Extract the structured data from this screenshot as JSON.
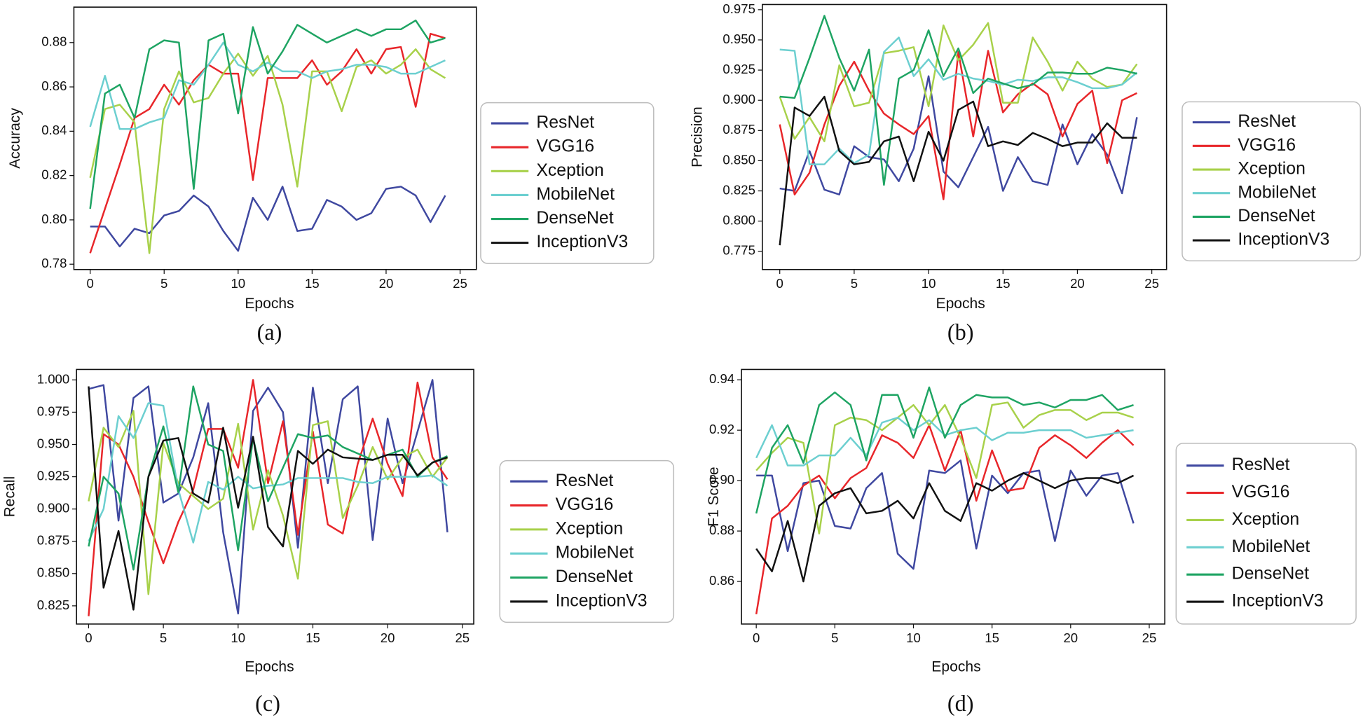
{
  "chart_data": [
    {
      "type": "line",
      "caption": "(a)",
      "x_label": "Epochs",
      "y_label": "Accuracy",
      "x": [
        0,
        1,
        2,
        3,
        4,
        5,
        6,
        7,
        8,
        9,
        10,
        11,
        12,
        13,
        14,
        15,
        16,
        17,
        18,
        19,
        20,
        21,
        22,
        23,
        24
      ],
      "xlim": [
        -1.1,
        26.1
      ],
      "xticks": [
        0,
        5,
        10,
        15,
        20,
        25
      ],
      "ylim": [
        0.7776,
        0.896
      ],
      "yticks": [
        0.78,
        {
          "value": 0.8,
          "label": "0.80"
        },
        0.82,
        0.84,
        0.86,
        0.88
      ],
      "series": [
        {
          "name": "ResNet",
          "color": "#3f48a0",
          "values": [
            0.797,
            0.797,
            0.788,
            0.796,
            0.794,
            0.802,
            0.804,
            0.811,
            0.806,
            0.795,
            0.786,
            0.81,
            0.8,
            0.815,
            0.795,
            0.796,
            0.809,
            0.806,
            0.8,
            0.803,
            0.814,
            0.815,
            0.811,
            0.799,
            0.811
          ]
        },
        {
          "name": "VGG16",
          "color": "#e8262a",
          "values": [
            0.785,
            0.805,
            0.825,
            0.846,
            0.85,
            0.861,
            0.852,
            0.863,
            0.87,
            0.866,
            0.866,
            0.818,
            0.864,
            0.864,
            0.864,
            0.872,
            0.861,
            0.867,
            0.877,
            0.866,
            0.877,
            0.878,
            0.851,
            0.884,
            0.882
          ]
        },
        {
          "name": "Xception",
          "color": "#a8d14a",
          "values": [
            0.819,
            0.85,
            0.852,
            0.844,
            0.785,
            0.85,
            0.867,
            0.853,
            0.855,
            0.866,
            0.875,
            0.865,
            0.874,
            0.852,
            0.815,
            0.867,
            0.867,
            0.849,
            0.869,
            0.872,
            0.866,
            0.87,
            0.877,
            0.868,
            0.864
          ]
        },
        {
          "name": "MobileNet",
          "color": "#6ccfd0",
          "values": [
            0.842,
            0.865,
            0.841,
            0.841,
            0.844,
            0.846,
            0.863,
            0.861,
            0.87,
            0.88,
            0.87,
            0.867,
            0.871,
            0.867,
            0.867,
            0.864,
            0.867,
            0.868,
            0.87,
            0.87,
            0.869,
            0.866,
            0.866,
            0.869,
            0.872
          ]
        },
        {
          "name": "DenseNet",
          "color": "#1ea463",
          "values": [
            0.805,
            0.857,
            0.861,
            0.846,
            0.877,
            0.881,
            0.88,
            0.814,
            0.881,
            0.884,
            0.848,
            0.887,
            0.866,
            0.876,
            0.888,
            0.884,
            0.88,
            0.883,
            0.886,
            0.883,
            0.886,
            0.886,
            0.89,
            0.88,
            0.882
          ]
        },
        {
          "name": "InceptionV3",
          "color": "#111111",
          "values": [
            null,
            null,
            null,
            null,
            null,
            null,
            null,
            null,
            null,
            null,
            null,
            null,
            null,
            null,
            null,
            null,
            null,
            null,
            null,
            null,
            null,
            null,
            null,
            null,
            null
          ]
        }
      ]
    },
    {
      "type": "line",
      "caption": "(b)",
      "x_label": "Epochs",
      "y_label": "Precision",
      "x": [
        0,
        1,
        2,
        3,
        4,
        5,
        6,
        7,
        8,
        9,
        10,
        11,
        12,
        13,
        14,
        15,
        16,
        17,
        18,
        19,
        20,
        21,
        22,
        23,
        24
      ],
      "xlim": [
        -1.17,
        25.99
      ],
      "xticks": [
        0,
        5,
        10,
        15,
        20,
        25
      ],
      "ylim": [
        0.7599,
        0.9793
      ],
      "yticks": [
        0.775,
        {
          "value": 0.8,
          "label": "0.800"
        },
        0.825,
        {
          "value": 0.85,
          "label": "0.850"
        },
        0.875,
        {
          "value": 0.9,
          "label": "0.900"
        },
        0.925,
        {
          "value": 0.95,
          "label": "0.950"
        },
        0.975
      ],
      "series": [
        {
          "name": "ResNet",
          "color": "#3f48a0",
          "values": [
            0.827,
            0.825,
            0.858,
            0.826,
            0.822,
            0.862,
            0.853,
            0.851,
            0.833,
            0.86,
            0.92,
            0.841,
            0.828,
            0.853,
            0.878,
            0.825,
            0.853,
            0.833,
            0.83,
            0.88,
            0.847,
            0.872,
            0.855,
            0.823,
            0.886
          ]
        },
        {
          "name": "VGG16",
          "color": "#e8262a",
          "values": [
            0.88,
            0.822,
            0.84,
            0.88,
            0.912,
            0.932,
            0.908,
            0.889,
            0.88,
            0.872,
            0.887,
            0.818,
            0.94,
            0.87,
            0.941,
            0.89,
            0.905,
            0.914,
            0.905,
            0.87,
            0.897,
            0.908,
            0.848,
            0.9,
            0.906
          ]
        },
        {
          "name": "Xception",
          "color": "#a8d14a",
          "values": [
            0.903,
            0.868,
            0.886,
            0.866,
            0.929,
            0.895,
            0.898,
            0.939,
            0.941,
            0.944,
            0.895,
            0.962,
            0.933,
            0.946,
            0.964,
            0.898,
            0.898,
            0.952,
            0.932,
            0.908,
            0.932,
            0.918,
            0.911,
            0.913,
            0.93
          ]
        },
        {
          "name": "MobileNet",
          "color": "#6ccfd0",
          "values": [
            0.942,
            0.941,
            0.847,
            0.847,
            0.86,
            0.848,
            0.855,
            0.94,
            0.952,
            0.92,
            0.934,
            0.917,
            0.922,
            0.918,
            0.916,
            0.913,
            0.917,
            0.916,
            0.919,
            0.919,
            0.915,
            0.91,
            0.91,
            0.913,
            0.923
          ]
        },
        {
          "name": "DenseNet",
          "color": "#1ea463",
          "values": [
            0.903,
            0.902,
            0.935,
            0.97,
            0.935,
            0.908,
            0.942,
            0.83,
            0.918,
            0.925,
            0.958,
            0.92,
            0.943,
            0.906,
            0.918,
            0.914,
            0.91,
            0.913,
            0.923,
            0.923,
            0.922,
            0.922,
            0.927,
            0.925,
            0.922
          ]
        },
        {
          "name": "InceptionV3",
          "color": "#111111",
          "values": [
            0.78,
            0.894,
            0.887,
            0.903,
            0.858,
            0.847,
            0.849,
            0.866,
            0.87,
            0.833,
            0.874,
            0.85,
            0.892,
            0.899,
            0.862,
            0.866,
            0.863,
            0.873,
            0.868,
            0.862,
            0.865,
            0.865,
            0.881,
            0.869,
            0.869
          ]
        }
      ]
    },
    {
      "type": "line",
      "caption": "(c)",
      "x_label": "Epochs",
      "y_label": "Recall",
      "x": [
        0,
        1,
        2,
        3,
        4,
        5,
        6,
        7,
        8,
        9,
        10,
        11,
        12,
        13,
        14,
        15,
        16,
        17,
        18,
        19,
        20,
        21,
        22,
        23,
        24
      ],
      "xlim": [
        -0.81,
        25.76
      ],
      "xticks": [
        0,
        5,
        10,
        15,
        20,
        25
      ],
      "ylim": [
        0.8109,
        1.0081
      ],
      "yticks": [
        0.825,
        {
          "value": 0.85,
          "label": "0.850"
        },
        0.875,
        {
          "value": 0.9,
          "label": "0.900"
        },
        0.925,
        {
          "value": 0.95,
          "label": "0.950"
        },
        0.975,
        {
          "value": 1,
          "label": "1.000"
        }
      ],
      "series": [
        {
          "name": "ResNet",
          "color": "#3f48a0",
          "values": [
            0.993,
            0.996,
            0.891,
            0.986,
            0.995,
            0.905,
            0.912,
            0.94,
            0.982,
            0.882,
            0.819,
            0.976,
            0.994,
            0.975,
            0.87,
            0.994,
            0.92,
            0.985,
            0.995,
            0.876,
            0.97,
            0.92,
            0.96,
            1.0,
            0.882
          ]
        },
        {
          "name": "VGG16",
          "color": "#e8262a",
          "values": [
            0.817,
            0.958,
            0.95,
            0.925,
            0.89,
            0.858,
            0.89,
            0.915,
            0.962,
            0.962,
            0.932,
            1.0,
            0.92,
            0.968,
            0.88,
            0.96,
            0.888,
            0.881,
            0.935,
            0.97,
            0.935,
            0.91,
            0.998,
            0.94,
            0.923
          ]
        },
        {
          "name": "Xception",
          "color": "#a8d14a",
          "values": [
            0.906,
            0.963,
            0.948,
            0.976,
            0.834,
            0.951,
            0.92,
            0.91,
            0.9,
            0.908,
            0.966,
            0.884,
            0.93,
            0.895,
            0.846,
            0.965,
            0.968,
            0.893,
            0.918,
            0.948,
            0.923,
            0.94,
            0.946,
            0.925,
            0.94
          ]
        },
        {
          "name": "MobileNet",
          "color": "#6ccfd0",
          "values": [
            0.875,
            0.9,
            0.972,
            0.955,
            0.982,
            0.98,
            0.915,
            0.874,
            0.921,
            0.915,
            0.925,
            0.916,
            0.918,
            0.919,
            0.924,
            0.924,
            0.924,
            0.924,
            0.921,
            0.92,
            0.925,
            0.925,
            0.925,
            0.926,
            0.918
          ]
        },
        {
          "name": "DenseNet",
          "color": "#1ea463",
          "values": [
            0.871,
            0.925,
            0.912,
            0.853,
            0.925,
            0.964,
            0.913,
            0.995,
            0.95,
            0.945,
            0.868,
            0.955,
            0.906,
            0.932,
            0.958,
            0.955,
            0.957,
            0.948,
            0.943,
            0.938,
            0.942,
            0.946,
            0.925,
            0.936,
            0.941
          ]
        },
        {
          "name": "InceptionV3",
          "color": "#111111",
          "values": [
            0.995,
            0.839,
            0.883,
            0.822,
            0.925,
            0.953,
            0.955,
            0.912,
            0.905,
            0.963,
            0.901,
            0.956,
            0.886,
            0.871,
            0.945,
            0.935,
            0.946,
            0.94,
            0.939,
            0.938,
            0.942,
            0.942,
            0.926,
            0.936,
            0.94
          ]
        }
      ]
    },
    {
      "type": "line",
      "caption": "(d)",
      "x_label": "Epochs",
      "y_label": "F1 Score",
      "x": [
        0,
        1,
        2,
        3,
        4,
        5,
        6,
        7,
        8,
        9,
        10,
        11,
        12,
        13,
        14,
        15,
        16,
        17,
        18,
        19,
        20,
        21,
        22,
        23,
        24
      ],
      "xlim": [
        -0.94,
        25.99
      ],
      "xticks": [
        0,
        5,
        10,
        15,
        20,
        25
      ],
      "ylim": [
        0.8431,
        0.9441
      ],
      "yticks": [
        0.86,
        0.88,
        {
          "value": 0.9,
          "label": "0.90"
        },
        0.92,
        0.94
      ],
      "series": [
        {
          "name": "ResNet",
          "color": "#3f48a0",
          "values": [
            0.902,
            0.902,
            0.872,
            0.899,
            0.9,
            0.882,
            0.881,
            0.897,
            0.903,
            0.871,
            0.865,
            0.904,
            0.903,
            0.908,
            0.873,
            0.902,
            0.895,
            0.903,
            0.904,
            0.876,
            0.904,
            0.894,
            0.902,
            0.903,
            0.883
          ]
        },
        {
          "name": "VGG16",
          "color": "#e8262a",
          "values": [
            0.847,
            0.885,
            0.89,
            0.898,
            0.902,
            0.893,
            0.901,
            0.905,
            0.918,
            0.915,
            0.909,
            0.922,
            0.904,
            0.92,
            0.892,
            0.912,
            0.896,
            0.897,
            0.913,
            0.918,
            0.914,
            0.909,
            0.915,
            0.92,
            0.914
          ]
        },
        {
          "name": "Xception",
          "color": "#a8d14a",
          "values": [
            0.904,
            0.911,
            0.917,
            0.915,
            0.879,
            0.922,
            0.925,
            0.924,
            0.92,
            0.925,
            0.93,
            0.922,
            0.93,
            0.917,
            0.901,
            0.93,
            0.931,
            0.921,
            0.926,
            0.928,
            0.928,
            0.924,
            0.927,
            0.927,
            0.925
          ]
        },
        {
          "name": "MobileNet",
          "color": "#6ccfd0",
          "values": [
            0.909,
            0.922,
            0.906,
            0.906,
            0.91,
            0.91,
            0.917,
            0.91,
            0.923,
            0.925,
            0.92,
            0.924,
            0.918,
            0.92,
            0.921,
            0.916,
            0.919,
            0.919,
            0.92,
            0.92,
            0.92,
            0.917,
            0.918,
            0.919,
            0.92
          ]
        },
        {
          "name": "DenseNet",
          "color": "#1ea463",
          "values": [
            0.887,
            0.913,
            0.922,
            0.907,
            0.93,
            0.935,
            0.93,
            0.908,
            0.934,
            0.934,
            0.917,
            0.937,
            0.917,
            0.93,
            0.934,
            0.933,
            0.933,
            0.93,
            0.931,
            0.929,
            0.932,
            0.932,
            0.934,
            0.928,
            0.93
          ]
        },
        {
          "name": "InceptionV3",
          "color": "#111111",
          "values": [
            0.873,
            0.864,
            0.884,
            0.86,
            0.89,
            0.895,
            0.897,
            0.887,
            0.888,
            0.892,
            0.885,
            0.899,
            0.888,
            0.884,
            0.899,
            0.896,
            0.9,
            0.903,
            0.9,
            0.897,
            0.9,
            0.901,
            0.901,
            0.899,
            0.902
          ]
        }
      ]
    }
  ]
}
